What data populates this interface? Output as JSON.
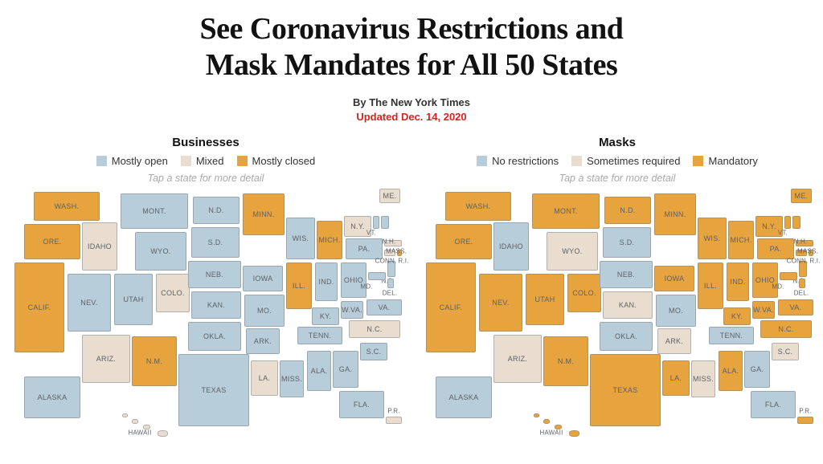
{
  "page": {
    "title_line1": "See Coronavirus Restrictions and",
    "title_line2": "Mask Mandates for All 50 States",
    "byline": "By The New York Times",
    "updated": "Updated Dec. 14, 2020"
  },
  "colors": {
    "blue": "#b7cdda",
    "beige": "#e9ddd0",
    "orange": "#e7a33e",
    "updated_red": "#d6231e",
    "label_gray": "#5d6166"
  },
  "maps": [
    {
      "title": "Businesses",
      "hint": "Tap a state for more detail",
      "legend": [
        {
          "label": "Mostly open",
          "color": "#b7cdda"
        },
        {
          "label": "Mixed",
          "color": "#e9ddd0"
        },
        {
          "label": "Mostly closed",
          "color": "#e7a33e"
        }
      ]
    },
    {
      "title": "Masks",
      "hint": "Tap a state for more detail",
      "legend": [
        {
          "label": "No restrictions",
          "color": "#b7cdda"
        },
        {
          "label": "Sometimes required",
          "color": "#e9ddd0"
        },
        {
          "label": "Mandatory",
          "color": "#e7a33e"
        }
      ]
    }
  ],
  "states": [
    {
      "id": "WA",
      "label": "WASH.",
      "businesses": 2,
      "masks": 2
    },
    {
      "id": "OR",
      "label": "ORE.",
      "businesses": 2,
      "masks": 2
    },
    {
      "id": "CA",
      "label": "CALIF.",
      "businesses": 2,
      "masks": 2
    },
    {
      "id": "ID",
      "label": "IDAHO",
      "businesses": 1,
      "masks": 0
    },
    {
      "id": "NV",
      "label": "NEV.",
      "businesses": 0,
      "masks": 2
    },
    {
      "id": "UT",
      "label": "UTAH",
      "businesses": 0,
      "masks": 2
    },
    {
      "id": "AZ",
      "label": "ARIZ.",
      "businesses": 1,
      "masks": 1
    },
    {
      "id": "MT",
      "label": "MONT.",
      "businesses": 0,
      "masks": 2
    },
    {
      "id": "WY",
      "label": "WYO.",
      "businesses": 0,
      "masks": 1
    },
    {
      "id": "CO",
      "label": "COLO.",
      "businesses": 1,
      "masks": 2
    },
    {
      "id": "NM",
      "label": "N.M.",
      "businesses": 2,
      "masks": 2
    },
    {
      "id": "ND",
      "label": "N.D.",
      "businesses": 0,
      "masks": 2
    },
    {
      "id": "SD",
      "label": "S.D.",
      "businesses": 0,
      "masks": 0
    },
    {
      "id": "NE",
      "label": "NEB.",
      "businesses": 0,
      "masks": 0
    },
    {
      "id": "KS",
      "label": "KAN.",
      "businesses": 0,
      "masks": 1
    },
    {
      "id": "OK",
      "label": "OKLA.",
      "businesses": 0,
      "masks": 0
    },
    {
      "id": "TX",
      "label": "TEXAS",
      "businesses": 0,
      "masks": 2
    },
    {
      "id": "MN",
      "label": "MINN.",
      "businesses": 2,
      "masks": 2
    },
    {
      "id": "IA",
      "label": "IOWA",
      "businesses": 0,
      "masks": 2
    },
    {
      "id": "MO",
      "label": "MO.",
      "businesses": 0,
      "masks": 0
    },
    {
      "id": "AR",
      "label": "ARK.",
      "businesses": 0,
      "masks": 1
    },
    {
      "id": "LA",
      "label": "LA.",
      "businesses": 1,
      "masks": 2
    },
    {
      "id": "WI",
      "label": "WIS.",
      "businesses": 0,
      "masks": 2
    },
    {
      "id": "IL",
      "label": "ILL.",
      "businesses": 2,
      "masks": 2
    },
    {
      "id": "MS",
      "label": "MISS.",
      "businesses": 0,
      "masks": 1
    },
    {
      "id": "MI",
      "label": "MICH.",
      "businesses": 2,
      "masks": 2
    },
    {
      "id": "IN",
      "label": "IND.",
      "businesses": 0,
      "masks": 2
    },
    {
      "id": "OH",
      "label": "OHIO",
      "businesses": 0,
      "masks": 2
    },
    {
      "id": "KY",
      "label": "KY.",
      "businesses": 0,
      "masks": 2
    },
    {
      "id": "TN",
      "label": "TENN.",
      "businesses": 0,
      "masks": 0
    },
    {
      "id": "AL",
      "label": "ALA.",
      "businesses": 0,
      "masks": 2
    },
    {
      "id": "GA",
      "label": "GA.",
      "businesses": 0,
      "masks": 0
    },
    {
      "id": "FL",
      "label": "FLA.",
      "businesses": 0,
      "masks": 0
    },
    {
      "id": "SC",
      "label": "S.C.",
      "businesses": 0,
      "masks": 1
    },
    {
      "id": "NC",
      "label": "N.C.",
      "businesses": 1,
      "masks": 2
    },
    {
      "id": "VA",
      "label": "VA.",
      "businesses": 0,
      "masks": 2
    },
    {
      "id": "WV",
      "label": "W.VA.",
      "businesses": 0,
      "masks": 2
    },
    {
      "id": "PA",
      "label": "PA.",
      "businesses": 0,
      "masks": 2
    },
    {
      "id": "NY",
      "label": "N.Y.",
      "businesses": 1,
      "masks": 2
    },
    {
      "id": "NJ",
      "label": "N.J.",
      "businesses": 0,
      "masks": 2
    },
    {
      "id": "MD",
      "label": "MD.",
      "businesses": 0,
      "masks": 2
    },
    {
      "id": "DE",
      "label": "DEL.",
      "businesses": 0,
      "masks": 2
    },
    {
      "id": "CT",
      "label": "CONN.",
      "businesses": 1,
      "masks": 2
    },
    {
      "id": "RI",
      "label": "R.I.",
      "businesses": 2,
      "masks": 2
    },
    {
      "id": "MA",
      "label": "MASS.",
      "businesses": 1,
      "masks": 2
    },
    {
      "id": "VT",
      "label": "VT.",
      "businesses": 0,
      "masks": 2
    },
    {
      "id": "NH",
      "label": "N.H.",
      "businesses": 0,
      "masks": 2
    },
    {
      "id": "ME",
      "label": "ME.",
      "businesses": 1,
      "masks": 2
    },
    {
      "id": "AK",
      "label": "ALASKA",
      "businesses": 0,
      "masks": 0
    },
    {
      "id": "HI",
      "label": "HAWAII",
      "businesses": 1,
      "masks": 2
    },
    {
      "id": "PR",
      "label": "P.R.",
      "businesses": 1,
      "masks": 2
    }
  ]
}
